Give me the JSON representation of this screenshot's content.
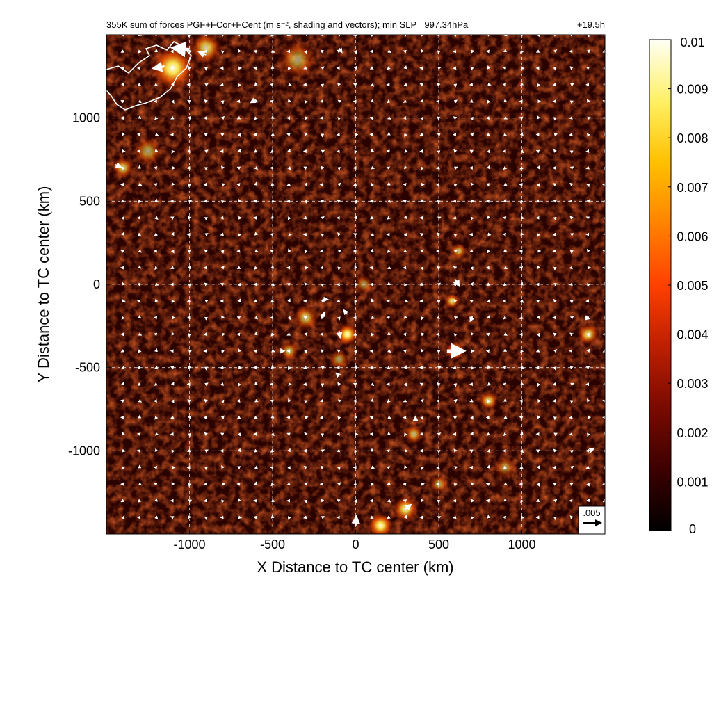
{
  "chart_data": {
    "type": "heatmap",
    "title": "355K sum of forces PGF+FCor+FCent (m s⁻², shading and vectors); min SLP= 997.34hPa",
    "time_label": "+19.5h",
    "xlabel": "X Distance to TC center (km)",
    "ylabel": "Y Distance to TC center (km)",
    "xlim": [
      -1500,
      1500
    ],
    "ylim": [
      -1500,
      1500
    ],
    "x_ticks": [
      -1000,
      -500,
      0,
      500,
      1000
    ],
    "y_ticks": [
      -1000,
      -500,
      0,
      500,
      1000
    ],
    "x_tick_labels": [
      "-1000",
      "-500",
      "0",
      "500",
      "1000"
    ],
    "y_tick_labels": [
      "-1000",
      "-500",
      "0",
      "500",
      "1000"
    ],
    "grid": true,
    "colorbar": {
      "min": 0,
      "max": 0.01,
      "ticks": [
        0,
        0.001,
        0.002,
        0.003,
        0.004,
        0.005,
        0.006,
        0.007,
        0.008,
        0.009,
        0.01
      ],
      "tick_labels": [
        "0",
        "0.001",
        "0.002",
        "0.003",
        "0.004",
        "0.005",
        "0.006",
        "0.007",
        "0.008",
        "0.009",
        "0.01"
      ],
      "colors": [
        "#000000",
        "#3a0000",
        "#7a0a00",
        "#b31c00",
        "#e03000",
        "#ff5a00",
        "#ff8c00",
        "#ffbf00",
        "#ffe94d",
        "#fff6a8",
        "#fffff0"
      ]
    },
    "reference_vector": {
      "label": ".005",
      "magnitude": 0.005
    },
    "hotspots": [
      {
        "x": -1100,
        "y": 1300,
        "intensity": 0.009,
        "r": 140
      },
      {
        "x": -900,
        "y": 1420,
        "intensity": 0.007,
        "r": 100
      },
      {
        "x": -350,
        "y": 1350,
        "intensity": 0.005,
        "r": 120
      },
      {
        "x": -1250,
        "y": 800,
        "intensity": 0.005,
        "r": 90
      },
      {
        "x": -1400,
        "y": 700,
        "intensity": 0.006,
        "r": 70
      },
      {
        "x": -50,
        "y": -300,
        "intensity": 0.009,
        "r": 70
      },
      {
        "x": -300,
        "y": -200,
        "intensity": 0.006,
        "r": 80
      },
      {
        "x": -400,
        "y": -400,
        "intensity": 0.006,
        "r": 60
      },
      {
        "x": -100,
        "y": -450,
        "intensity": 0.005,
        "r": 60
      },
      {
        "x": 50,
        "y": 0,
        "intensity": 0.004,
        "r": 60
      },
      {
        "x": 600,
        "y": -400,
        "intensity": 0.009,
        "r": 60
      },
      {
        "x": 580,
        "y": -100,
        "intensity": 0.007,
        "r": 50
      },
      {
        "x": 620,
        "y": 200,
        "intensity": 0.006,
        "r": 50
      },
      {
        "x": 800,
        "y": -700,
        "intensity": 0.007,
        "r": 60
      },
      {
        "x": 1400,
        "y": -300,
        "intensity": 0.007,
        "r": 70
      },
      {
        "x": 350,
        "y": -900,
        "intensity": 0.006,
        "r": 60
      },
      {
        "x": 300,
        "y": -1350,
        "intensity": 0.008,
        "r": 80
      },
      {
        "x": 150,
        "y": -1450,
        "intensity": 0.009,
        "r": 80
      },
      {
        "x": 500,
        "y": -1200,
        "intensity": 0.005,
        "r": 60
      },
      {
        "x": 900,
        "y": -1100,
        "intensity": 0.004,
        "r": 70
      }
    ],
    "vectors": [
      {
        "x": -1000,
        "y": 1410,
        "u": -0.0045,
        "v": 0.0005
      },
      {
        "x": -1150,
        "y": 1310,
        "u": -0.003,
        "v": -0.0005
      },
      {
        "x": -900,
        "y": 1380,
        "u": -0.002,
        "v": 0.0008
      },
      {
        "x": -100,
        "y": 1420,
        "u": 0.0008,
        "v": -0.0012
      },
      {
        "x": -600,
        "y": 1110,
        "u": -0.0015,
        "v": -0.0008
      },
      {
        "x": -1450,
        "y": 720,
        "u": 0.0018,
        "v": -0.0008
      },
      {
        "x": 550,
        "y": -400,
        "u": 0.0045,
        "v": 0
      },
      {
        "x": 600,
        "y": 30,
        "u": 0.001,
        "v": -0.0018
      },
      {
        "x": -100,
        "y": -280,
        "u": 0.0003,
        "v": -0.0018
      },
      {
        "x": -200,
        "y": -200,
        "u": 0.0005,
        "v": 0.0015
      },
      {
        "x": -50,
        "y": -180,
        "u": -0.001,
        "v": 0.0012
      },
      {
        "x": -200,
        "y": -90,
        "u": 0.0015,
        "v": 0
      },
      {
        "x": 0,
        "y": -1450,
        "u": 0.0002,
        "v": 0.0025
      },
      {
        "x": 300,
        "y": -1350,
        "u": 0.0015,
        "v": 0.0012
      },
      {
        "x": 1400,
        "y": -1000,
        "u": 0.0015,
        "v": 0.0005
      },
      {
        "x": 1380,
        "y": -200,
        "u": 0.0012,
        "v": -0.0003
      },
      {
        "x": 360,
        "y": -820,
        "u": 0,
        "v": 0.0012
      },
      {
        "x": -100,
        "y": -550,
        "u": -0.0008,
        "v": 0.0008
      },
      {
        "x": -450,
        "y": -400,
        "u": 0.001,
        "v": 0
      },
      {
        "x": 700,
        "y": -200,
        "u": -0.0005,
        "v": -0.001
      }
    ],
    "small_vector_grid": {
      "x_start": -1400,
      "x_step": 100,
      "y_start": -1400,
      "y_step": 100,
      "u": 0.0004,
      "v": 0.0004
    }
  }
}
